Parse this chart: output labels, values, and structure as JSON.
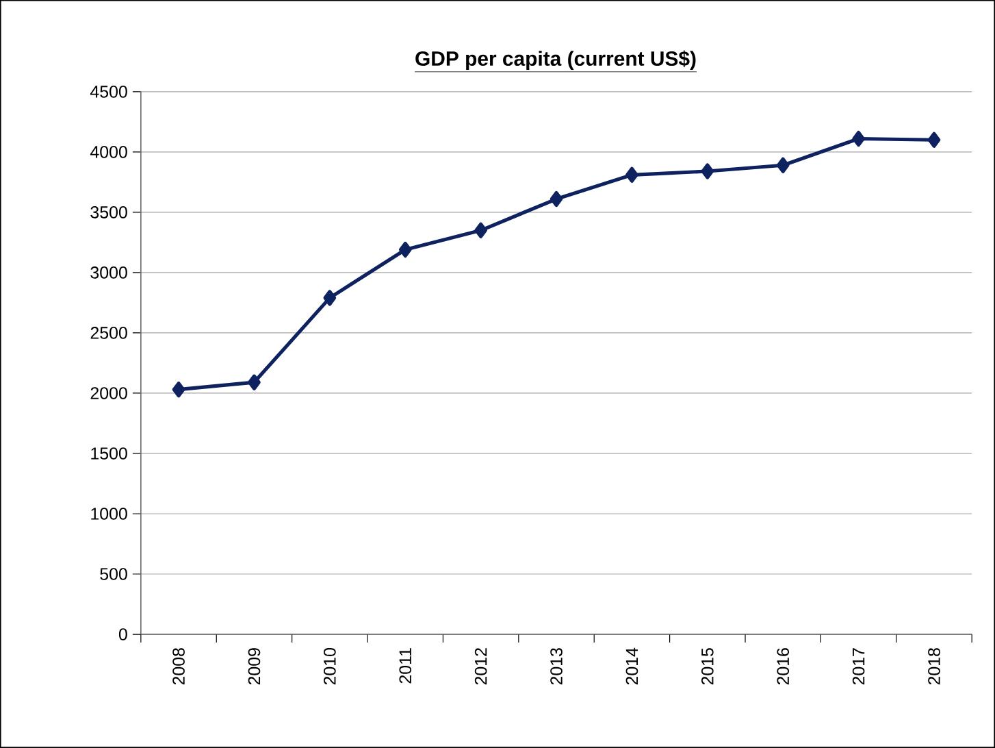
{
  "chart_data": {
    "type": "line",
    "title": "GDP per capita (current US$)",
    "categories": [
      "2008",
      "2009",
      "2010",
      "2011",
      "2012",
      "2013",
      "2014",
      "2015",
      "2016",
      "2017",
      "2018"
    ],
    "series": [
      {
        "color": "#0f2260",
        "values": [
          2030,
          2090,
          2790,
          3190,
          3350,
          3610,
          3810,
          3840,
          3890,
          4110,
          4100
        ]
      }
    ],
    "ylim": [
      0,
      4500
    ],
    "yticks": [
      0,
      500,
      1000,
      1500,
      2000,
      2500,
      3000,
      3500,
      4000,
      4500
    ],
    "grid": "y",
    "marker": "diamond",
    "line_style": "solid"
  }
}
